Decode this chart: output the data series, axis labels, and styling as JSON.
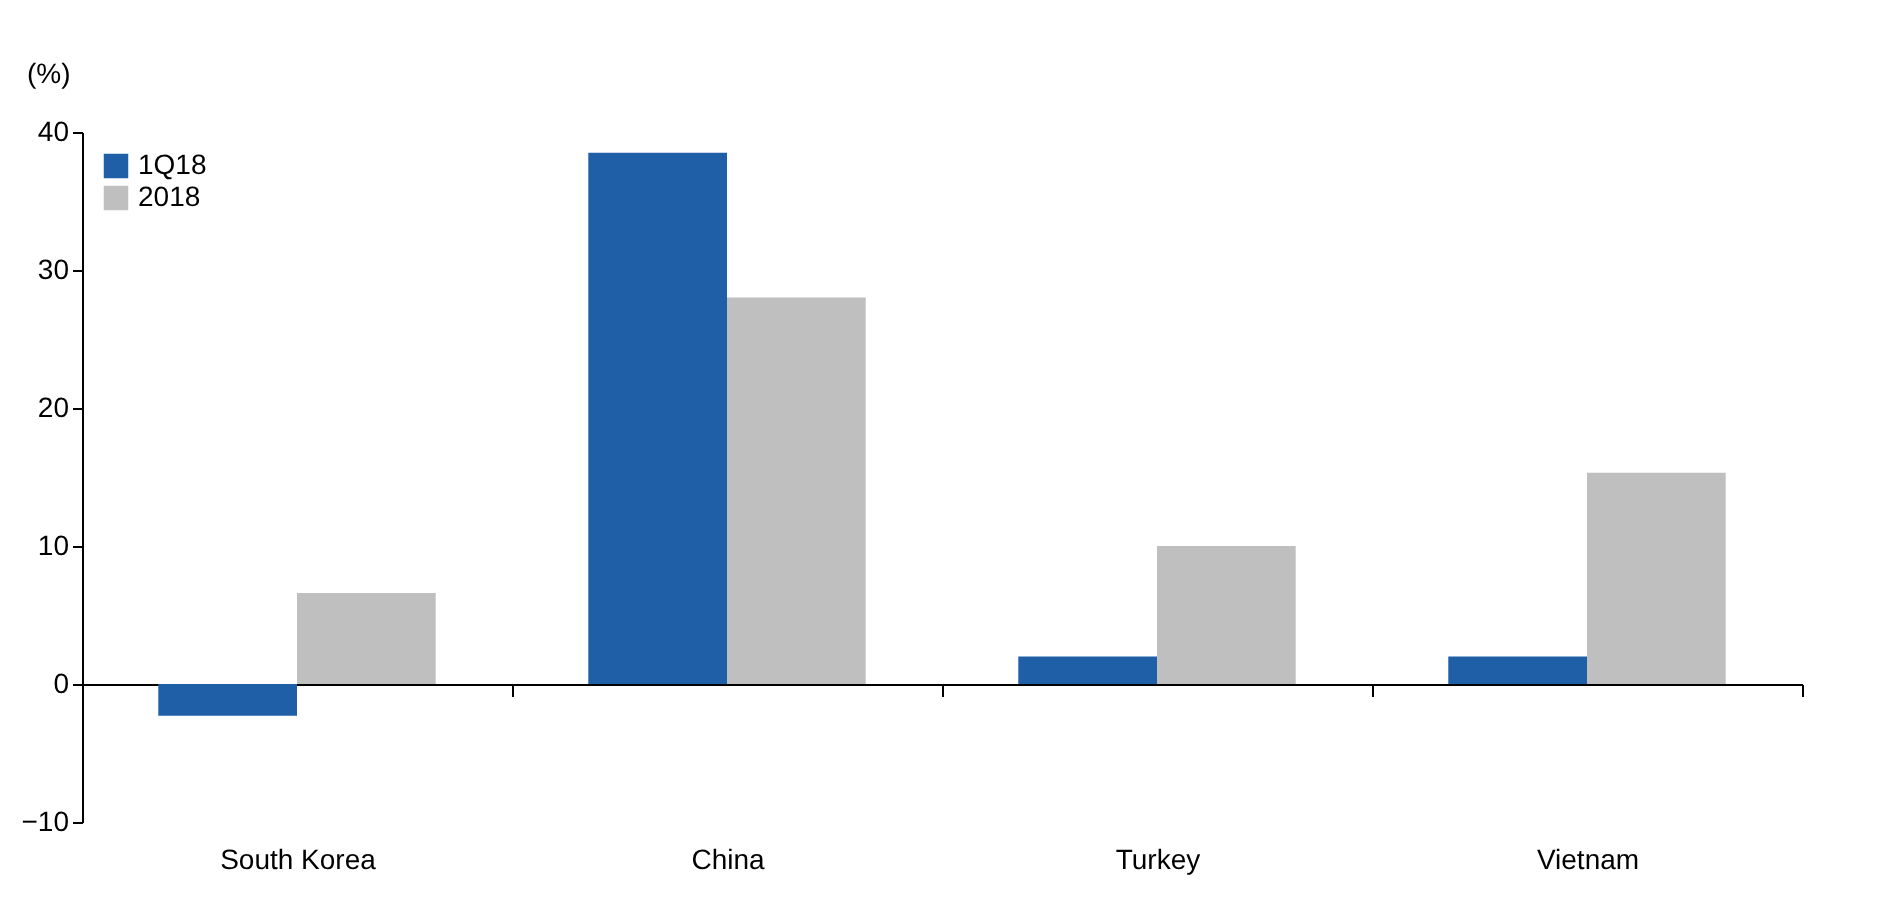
{
  "chart_data": {
    "type": "bar",
    "ylabel": "(%)",
    "categories": [
      "South Korea",
      "China",
      "Turkey",
      "Vietnam"
    ],
    "series": [
      {
        "name": "1Q18",
        "color": "#1f5fa8",
        "values": [
          -2.3,
          38.5,
          2.0,
          2.0
        ]
      },
      {
        "name": "2018",
        "color": "#bfbfbf",
        "values": [
          6.6,
          28.0,
          10.0,
          15.3
        ]
      }
    ],
    "ylim": [
      -10,
      40
    ],
    "yticks": [
      -10,
      0,
      10,
      20,
      30,
      40
    ],
    "legend": "top left"
  }
}
